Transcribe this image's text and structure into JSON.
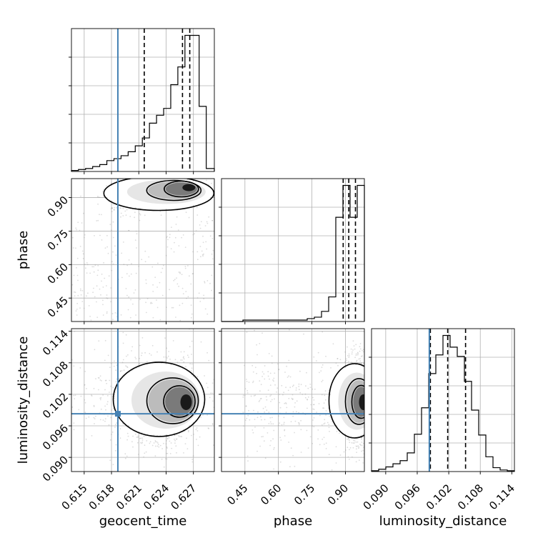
{
  "chart_data": {
    "type": "corner",
    "parameters": [
      "geocent_time",
      "phase",
      "luminosity_distance"
    ],
    "truths": {
      "geocent_time": 0.6187,
      "phase": null,
      "luminosity_distance": 0.0983
    },
    "colors": {
      "truth": "#4682b4",
      "hist": "#000000",
      "grid": "#b0b0b0"
    },
    "grid": true,
    "axes": {
      "geocent_time": {
        "range": [
          0.6136,
          0.6293
        ],
        "ticks": [
          0.615,
          0.618,
          0.621,
          0.624,
          0.627
        ],
        "tick_labels": [
          "0.615",
          "0.618",
          "0.621",
          "0.624",
          "0.627"
        ]
      },
      "phase": {
        "range": [
          0.345,
          0.985
        ],
        "ticks": [
          0.45,
          0.6,
          0.75,
          0.9
        ],
        "tick_labels": [
          "0.45",
          "0.60",
          "0.75",
          "0.90"
        ]
      },
      "luminosity_distance": {
        "range": [
          0.0873,
          0.1145
        ],
        "ticks": [
          0.09,
          0.096,
          0.102,
          0.108,
          0.114
        ],
        "tick_labels": [
          "0.090",
          "0.096",
          "0.102",
          "0.108",
          "0.114"
        ]
      }
    },
    "histograms": {
      "geocent_time": {
        "bin_edges": [
          0.6136,
          0.61437,
          0.61515,
          0.61593,
          0.61671,
          0.61749,
          0.61827,
          0.61905,
          0.61983,
          0.62061,
          0.62139,
          0.62217,
          0.62295,
          0.62373,
          0.62451,
          0.62529,
          0.62607,
          0.62685,
          0.62763,
          0.62841,
          0.6293
        ],
        "counts": [
          1,
          2,
          3,
          5,
          7,
          11,
          13,
          16,
          20,
          26,
          34,
          49,
          57,
          64,
          88,
          106,
          138,
          138,
          66,
          3
        ],
        "quantile_lines": [
          0.6216,
          0.6258,
          0.6266
        ]
      },
      "phase": {
        "bin_edges": [
          0.345,
          0.377,
          0.409,
          0.441,
          0.473,
          0.505,
          0.537,
          0.569,
          0.601,
          0.633,
          0.665,
          0.697,
          0.729,
          0.761,
          0.793,
          0.825,
          0.857,
          0.889,
          0.921,
          0.953,
          0.985
        ],
        "counts": [
          0,
          0,
          0,
          1,
          1,
          1,
          1,
          1,
          1,
          1,
          1,
          1,
          2,
          3,
          7,
          17,
          72,
          94,
          72,
          94
        ],
        "quantile_lines": [
          0.89,
          0.915,
          0.945
        ]
      },
      "luminosity_distance": {
        "bin_edges": [
          0.0873,
          0.08866,
          0.09002,
          0.09138,
          0.09274,
          0.0941,
          0.09546,
          0.09682,
          0.09818,
          0.09954,
          0.1009,
          0.10226,
          0.10362,
          0.10498,
          0.10634,
          0.1077,
          0.10906,
          0.11042,
          0.11178,
          0.11314,
          0.1145
        ],
        "counts": [
          1,
          3,
          6,
          10,
          14,
          24,
          48,
          82,
          126,
          150,
          175,
          160,
          148,
          116,
          79,
          47,
          19,
          5,
          2,
          1
        ],
        "quantile_lines": [
          0.0985,
          0.1018,
          0.1052
        ]
      }
    },
    "densities": [
      {
        "x": "geocent_time",
        "y": "phase",
        "peak": {
          "x": 0.6265,
          "y": 0.945
        }
      },
      {
        "x": "geocent_time",
        "y": "luminosity_distance",
        "peak": {
          "x": 0.6262,
          "y": 0.1005
        }
      },
      {
        "x": "phase",
        "y": "luminosity_distance",
        "peak": {
          "x": 0.98,
          "y": 0.1005
        }
      }
    ]
  }
}
